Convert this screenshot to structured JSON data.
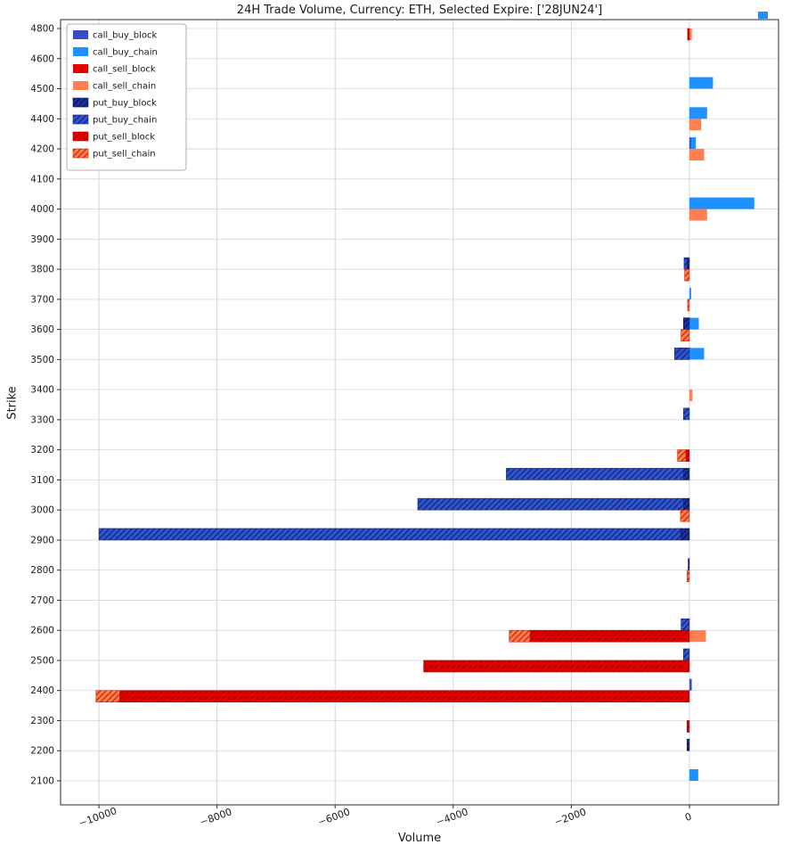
{
  "chart_data": {
    "type": "bar",
    "orientation": "horizontal",
    "title": "24H Trade Volume, Currency: ETH, Selected Expire: ['28JUN24']",
    "xlabel": "Volume",
    "ylabel": "Strike",
    "xlim": [
      -10650,
      1510
    ],
    "xticks": [
      -10000,
      -8000,
      -6000,
      -4000,
      -2000,
      0
    ],
    "grid": true,
    "legend_position": "upper left",
    "strikes": [
      4800,
      4600,
      4500,
      4400,
      4200,
      4100,
      4000,
      3900,
      3800,
      3700,
      3600,
      3500,
      3400,
      3300,
      3200,
      3100,
      3000,
      2900,
      2800,
      2700,
      2600,
      2500,
      2400,
      2300,
      2200,
      2100
    ],
    "series": [
      {
        "name": "call_buy_block",
        "color": "#3B4CC0",
        "hatch": false,
        "group": "buy"
      },
      {
        "name": "call_buy_chain",
        "color": "#1E90FF",
        "hatch": false,
        "group": "buy"
      },
      {
        "name": "call_sell_block",
        "color": "#E50000",
        "hatch": false,
        "group": "sell"
      },
      {
        "name": "call_sell_chain",
        "color": "#FF7F50",
        "hatch": false,
        "group": "sell"
      },
      {
        "name": "put_buy_block",
        "color": "#1B2FA0",
        "hatch": true,
        "hatch_color": "#0D1650",
        "group": "buy"
      },
      {
        "name": "put_buy_chain",
        "color": "#2E55D4",
        "hatch": true,
        "hatch_color": "#14246E",
        "group": "buy"
      },
      {
        "name": "put_sell_block",
        "color": "#E50000",
        "hatch": true,
        "hatch_color": "#B30000",
        "group": "sell"
      },
      {
        "name": "put_sell_chain",
        "color": "#FF7F50",
        "hatch": true,
        "hatch_color": "#CC2200",
        "group": "sell"
      }
    ],
    "values": {
      "call_buy_block": [
        0,
        0,
        0,
        0,
        30,
        0,
        0,
        0,
        0,
        0,
        0,
        0,
        0,
        0,
        0,
        0,
        0,
        0,
        0,
        0,
        0,
        0,
        40,
        0,
        0,
        0
      ],
      "call_buy_chain": [
        0,
        0,
        400,
        300,
        80,
        0,
        1100,
        0,
        0,
        30,
        160,
        250,
        0,
        0,
        0,
        0,
        0,
        0,
        0,
        0,
        0,
        0,
        0,
        0,
        0,
        150
      ],
      "call_sell_block": [
        0,
        0,
        0,
        0,
        0,
        0,
        0,
        0,
        0,
        0,
        0,
        0,
        0,
        0,
        0,
        0,
        0,
        0,
        0,
        0,
        0,
        0,
        0,
        0,
        0,
        0
      ],
      "call_sell_chain": [
        40,
        0,
        0,
        200,
        250,
        0,
        300,
        0,
        0,
        0,
        0,
        0,
        50,
        0,
        0,
        0,
        0,
        0,
        0,
        0,
        280,
        0,
        0,
        0,
        0,
        0
      ],
      "put_buy_block": [
        0,
        0,
        0,
        0,
        0,
        0,
        0,
        0,
        -40,
        0,
        -100,
        0,
        0,
        0,
        0,
        -100,
        -100,
        -150,
        -20,
        0,
        0,
        0,
        0,
        0,
        -40,
        0
      ],
      "put_buy_chain": [
        0,
        0,
        0,
        0,
        0,
        0,
        0,
        0,
        -50,
        0,
        0,
        -250,
        0,
        -100,
        0,
        -3000,
        -4500,
        -9850,
        0,
        0,
        -140,
        -100,
        0,
        0,
        0,
        0
      ],
      "put_sell_block": [
        -30,
        0,
        0,
        0,
        0,
        0,
        0,
        0,
        0,
        0,
        0,
        0,
        0,
        0,
        -60,
        0,
        0,
        0,
        0,
        0,
        -2700,
        -4500,
        -9650,
        -40,
        0,
        0
      ],
      "put_sell_chain": [
        0,
        0,
        0,
        0,
        0,
        0,
        0,
        0,
        -80,
        -30,
        -140,
        0,
        0,
        0,
        -140,
        0,
        -150,
        0,
        -40,
        0,
        -350,
        0,
        -400,
        0,
        0,
        0
      ]
    },
    "colors": {
      "grid": "#D6D6D6",
      "frame": "#2A2A2A",
      "background": "#FFFFFF",
      "tick_text": "#1A1A1A"
    },
    "extras": {
      "top_right_tick_color": "#1E90FF"
    }
  }
}
